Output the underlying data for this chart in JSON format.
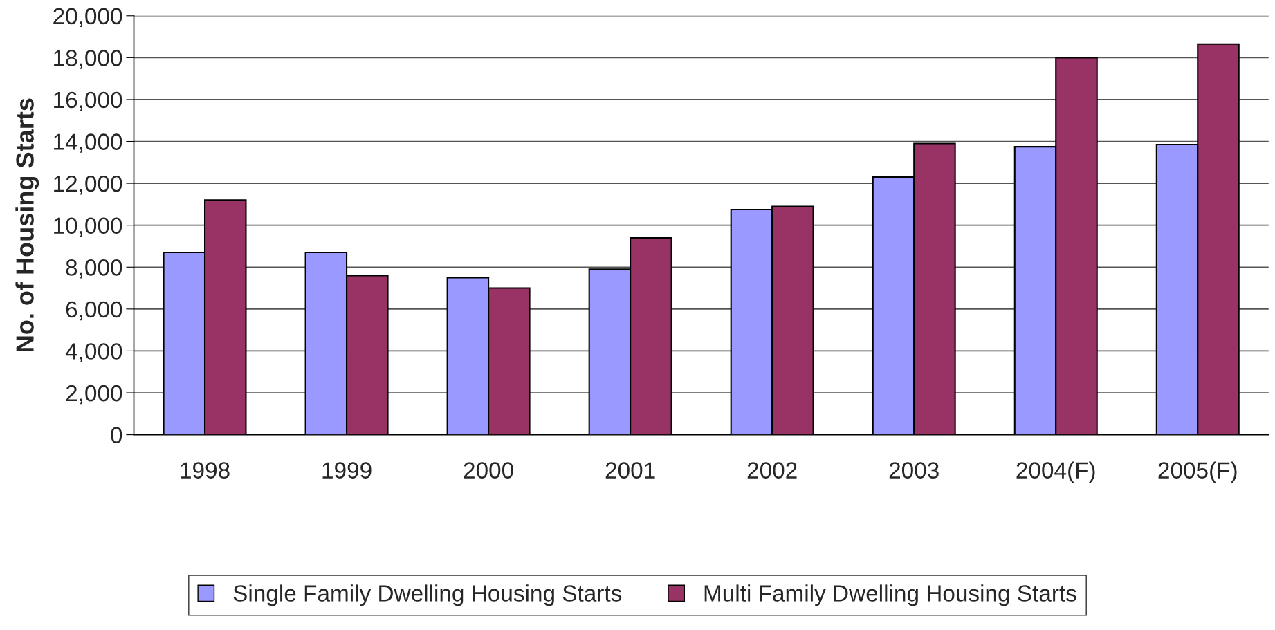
{
  "chart_data": {
    "type": "bar",
    "ylabel": "No. of Housing Starts",
    "categories": [
      "1998",
      "1999",
      "2000",
      "2001",
      "2002",
      "2003",
      "2004(F)",
      "2005(F)"
    ],
    "series": [
      {
        "name": "Single Family Dwelling Housing Starts",
        "color": "#9999ff",
        "values": [
          8700,
          8700,
          7500,
          7900,
          10750,
          12300,
          13750,
          13850
        ]
      },
      {
        "name": "Multi Family Dwelling Housing Starts",
        "color": "#993366",
        "values": [
          11200,
          7600,
          7000,
          9400,
          10900,
          13900,
          18000,
          18650
        ]
      }
    ],
    "ylim": [
      0,
      20000
    ],
    "yticks": [
      {
        "value": 0,
        "label": "0"
      },
      {
        "value": 2000,
        "label": "2,000"
      },
      {
        "value": 4000,
        "label": "4,000"
      },
      {
        "value": 6000,
        "label": "6,000"
      },
      {
        "value": 8000,
        "label": "8,000"
      },
      {
        "value": 10000,
        "label": "10,000"
      },
      {
        "value": 12000,
        "label": "12,000"
      },
      {
        "value": 14000,
        "label": "14,000"
      },
      {
        "value": 16000,
        "label": "16,000"
      },
      {
        "value": 18000,
        "label": "18,000"
      },
      {
        "value": 20000,
        "label": "20,000"
      }
    ],
    "grid": "y",
    "legend": "bottom"
  }
}
